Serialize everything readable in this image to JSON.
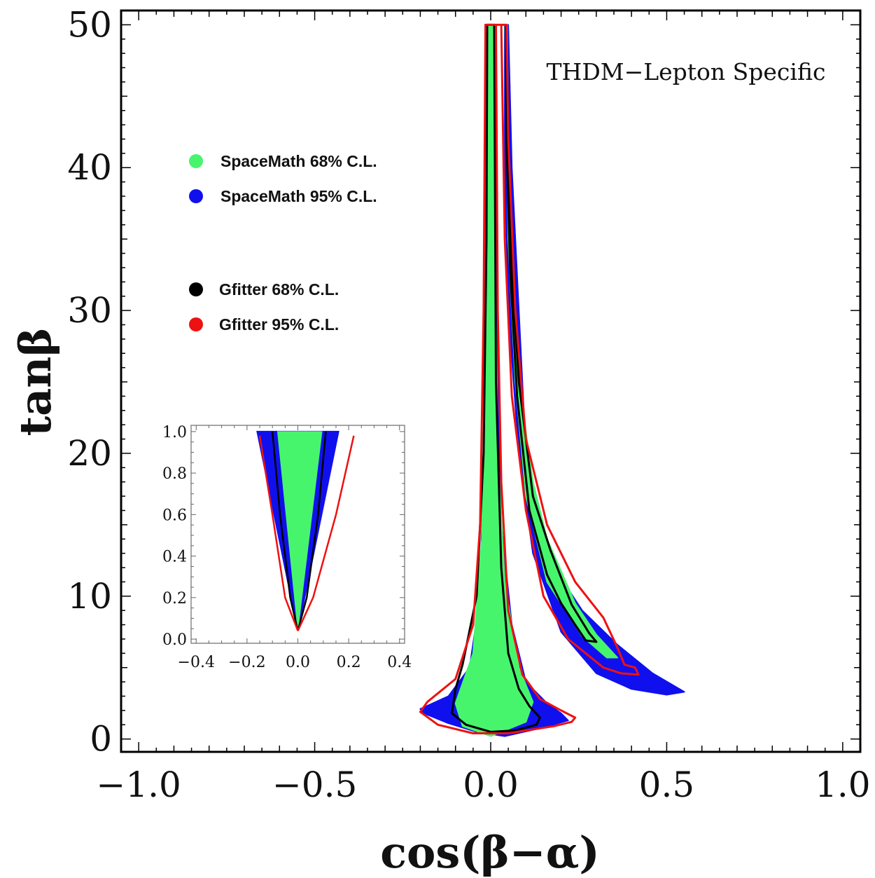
{
  "chart_data": {
    "type": "region",
    "xlabel": "cos(β−α)",
    "ylabel": "tanβ",
    "xlim": [
      -1.05,
      1.05
    ],
    "ylim": [
      -0.9,
      51
    ],
    "xticks": [
      -1.0,
      -0.5,
      0.0,
      0.5,
      1.0
    ],
    "xtick_labels": [
      "−1.0",
      "−0.5",
      "0.0",
      "0.5",
      "1.0"
    ],
    "yticks": [
      0,
      10,
      20,
      30,
      40,
      50
    ],
    "ytick_labels": [
      "0",
      "10",
      "20",
      "30",
      "40",
      "50"
    ],
    "annotation": "THDM−Lepton Specific",
    "colors": {
      "spacemath_68": "#47f56d",
      "spacemath_95": "#1010ee",
      "gfitter_68": "#000000",
      "gfitter_95": "#ee1111"
    },
    "legend": [
      {
        "label": "SpaceMath 68% C.L.",
        "color": "#47f56d"
      },
      {
        "label": "SpaceMath 95% C.L.",
        "color": "#1010ee"
      },
      {
        "label": "Gfitter 68% C.L.",
        "color": "#000000"
      },
      {
        "label": "Gfitter 95% C.L.",
        "color": "#ee1111"
      }
    ],
    "regions": {
      "spacemath_95": [
        [
          [
            -0.015,
            50
          ],
          [
            0.015,
            50
          ],
          [
            0.02,
            30
          ],
          [
            0.03,
            15
          ],
          [
            0.06,
            8
          ],
          [
            0.1,
            4
          ],
          [
            0.16,
            2.5
          ],
          [
            0.2,
            1.8
          ],
          [
            0.22,
            1.3
          ],
          [
            0.15,
            0.8
          ],
          [
            0.04,
            0.2
          ],
          [
            -0.04,
            0.5
          ],
          [
            -0.12,
            1.1
          ],
          [
            -0.19,
            1.8
          ],
          [
            -0.2,
            2.1
          ],
          [
            -0.12,
            3
          ],
          [
            -0.06,
            5
          ],
          [
            -0.03,
            10
          ],
          [
            -0.02,
            20
          ],
          [
            -0.015,
            35
          ]
        ],
        [
          [
            0.04,
            50
          ],
          [
            0.05,
            50
          ],
          [
            0.06,
            40
          ],
          [
            0.08,
            30
          ],
          [
            0.1,
            20
          ],
          [
            0.14,
            15
          ],
          [
            0.18,
            12
          ],
          [
            0.26,
            9
          ],
          [
            0.36,
            6.6
          ],
          [
            0.46,
            4.6
          ],
          [
            0.55,
            3.3
          ],
          [
            0.5,
            3.1
          ],
          [
            0.4,
            3.5
          ],
          [
            0.3,
            4.6
          ],
          [
            0.2,
            7.5
          ],
          [
            0.12,
            13
          ],
          [
            0.08,
            20
          ],
          [
            0.05,
            30
          ],
          [
            0.04,
            40
          ]
        ]
      ],
      "spacemath_68": [
        [
          [
            -0.01,
            50
          ],
          [
            0.01,
            50
          ],
          [
            0.012,
            35
          ],
          [
            0.02,
            20
          ],
          [
            0.04,
            11
          ],
          [
            0.08,
            5
          ],
          [
            0.12,
            2.6
          ],
          [
            0.1,
            1.2
          ],
          [
            0.0,
            0.2
          ],
          [
            -0.08,
            0.9
          ],
          [
            -0.1,
            2.5
          ],
          [
            -0.05,
            6
          ],
          [
            -0.025,
            14
          ],
          [
            -0.015,
            30
          ]
        ],
        [
          [
            0.041,
            50
          ],
          [
            0.047,
            50
          ],
          [
            0.05,
            42
          ],
          [
            0.06,
            35
          ],
          [
            0.08,
            25
          ],
          [
            0.12,
            18
          ],
          [
            0.16,
            14
          ],
          [
            0.24,
            9.5
          ],
          [
            0.3,
            7.3
          ],
          [
            0.36,
            5.7
          ],
          [
            0.33,
            5.7
          ],
          [
            0.26,
            7.2
          ],
          [
            0.16,
            11
          ],
          [
            0.1,
            17
          ],
          [
            0.07,
            25
          ],
          [
            0.05,
            35
          ]
        ]
      ]
    },
    "contours": {
      "gfitter_95": [
        [
          [
            -0.015,
            50
          ],
          [
            -0.02,
            30
          ],
          [
            -0.03,
            15
          ],
          [
            -0.05,
            8
          ],
          [
            -0.1,
            4.2
          ],
          [
            -0.18,
            2.6
          ],
          [
            -0.2,
            1.9
          ],
          [
            -0.15,
            1.0
          ],
          [
            -0.05,
            0.4
          ],
          [
            0.05,
            0.4
          ],
          [
            0.18,
            0.9
          ],
          [
            0.23,
            1.2
          ],
          [
            0.24,
            1.5
          ],
          [
            0.2,
            2.0
          ],
          [
            0.14,
            2.8
          ],
          [
            0.09,
            4.5
          ],
          [
            0.05,
            9
          ],
          [
            0.03,
            18
          ],
          [
            0.02,
            30
          ],
          [
            0.015,
            50
          ],
          [
            0.045,
            50
          ],
          [
            0.05,
            42
          ],
          [
            0.07,
            30
          ],
          [
            0.1,
            21
          ],
          [
            0.16,
            15
          ],
          [
            0.24,
            11
          ],
          [
            0.32,
            8.5
          ],
          [
            0.36,
            6.4
          ],
          [
            0.38,
            5.2
          ],
          [
            0.41,
            5.0
          ],
          [
            0.42,
            4.5
          ],
          [
            0.37,
            4.6
          ],
          [
            0.32,
            5.0
          ],
          [
            0.22,
            7.0
          ],
          [
            0.15,
            10
          ],
          [
            0.1,
            16
          ],
          [
            0.06,
            24
          ],
          [
            0.04,
            35
          ],
          [
            0.03,
            50
          ]
        ]
      ],
      "gfitter_68": [
        [
          [
            -0.01,
            50
          ],
          [
            -0.012,
            35
          ],
          [
            -0.02,
            20
          ],
          [
            -0.04,
            10
          ],
          [
            -0.08,
            5.2
          ],
          [
            -0.1,
            3.5
          ],
          [
            -0.11,
            1.8
          ],
          [
            -0.07,
            1.0
          ],
          [
            0.0,
            0.5
          ],
          [
            0.07,
            0.6
          ],
          [
            0.13,
            1.0
          ],
          [
            0.14,
            1.5
          ],
          [
            0.11,
            2.3
          ],
          [
            0.08,
            3.5
          ],
          [
            0.05,
            6
          ],
          [
            0.03,
            12
          ],
          [
            0.015,
            25
          ],
          [
            0.01,
            50
          ]
        ],
        [
          [
            0.043,
            50
          ],
          [
            0.048,
            45
          ],
          [
            0.052,
            38
          ],
          [
            0.06,
            33
          ],
          [
            0.08,
            25
          ],
          [
            0.12,
            17
          ],
          [
            0.17,
            13.2
          ],
          [
            0.23,
            9.4
          ],
          [
            0.28,
            7.4
          ],
          [
            0.3,
            6.8
          ],
          [
            0.27,
            6.9
          ],
          [
            0.24,
            8.0
          ],
          [
            0.2,
            9.5
          ],
          [
            0.16,
            11.5
          ],
          [
            0.11,
            16
          ],
          [
            0.075,
            24
          ],
          [
            0.055,
            33
          ],
          [
            0.045,
            42
          ]
        ]
      ]
    },
    "inset": {
      "xlim": [
        -0.42,
        0.42
      ],
      "ylim": [
        -0.02,
        1.03
      ],
      "xticks": [
        -0.4,
        -0.2,
        0.0,
        0.2,
        0.4
      ],
      "xtick_labels": [
        "−0.4",
        "−0.2",
        "0.0",
        "0.2",
        "0.4"
      ],
      "yticks": [
        0.0,
        0.2,
        0.4,
        0.6,
        0.8,
        1.0
      ],
      "ytick_labels": [
        "0.0",
        "0.2",
        "0.4",
        "0.6",
        "0.8",
        "1.0"
      ],
      "spacemath_95": [
        [
          -0.16,
          1.0
        ],
        [
          0.16,
          1.0
        ],
        [
          0.0,
          0.04
        ]
      ],
      "spacemath_68": [
        [
          -0.08,
          1.0
        ],
        [
          0.095,
          1.0
        ],
        [
          0.0,
          0.04
        ]
      ],
      "gfitter_68": [
        [
          [
            -0.1,
            1.0
          ],
          [
            -0.07,
            0.6
          ],
          [
            -0.03,
            0.2
          ],
          [
            0.0,
            0.04
          ]
        ],
        [
          [
            0.11,
            1.0
          ],
          [
            0.08,
            0.6
          ],
          [
            0.035,
            0.2
          ],
          [
            0.0,
            0.04
          ]
        ]
      ],
      "gfitter_95": [
        [
          [
            -0.15,
            0.98
          ],
          [
            -0.1,
            0.6
          ],
          [
            -0.05,
            0.2
          ],
          [
            0.0,
            0.04
          ]
        ],
        [
          [
            0.22,
            0.98
          ],
          [
            0.15,
            0.6
          ],
          [
            0.06,
            0.2
          ],
          [
            0.0,
            0.04
          ]
        ]
      ]
    }
  }
}
